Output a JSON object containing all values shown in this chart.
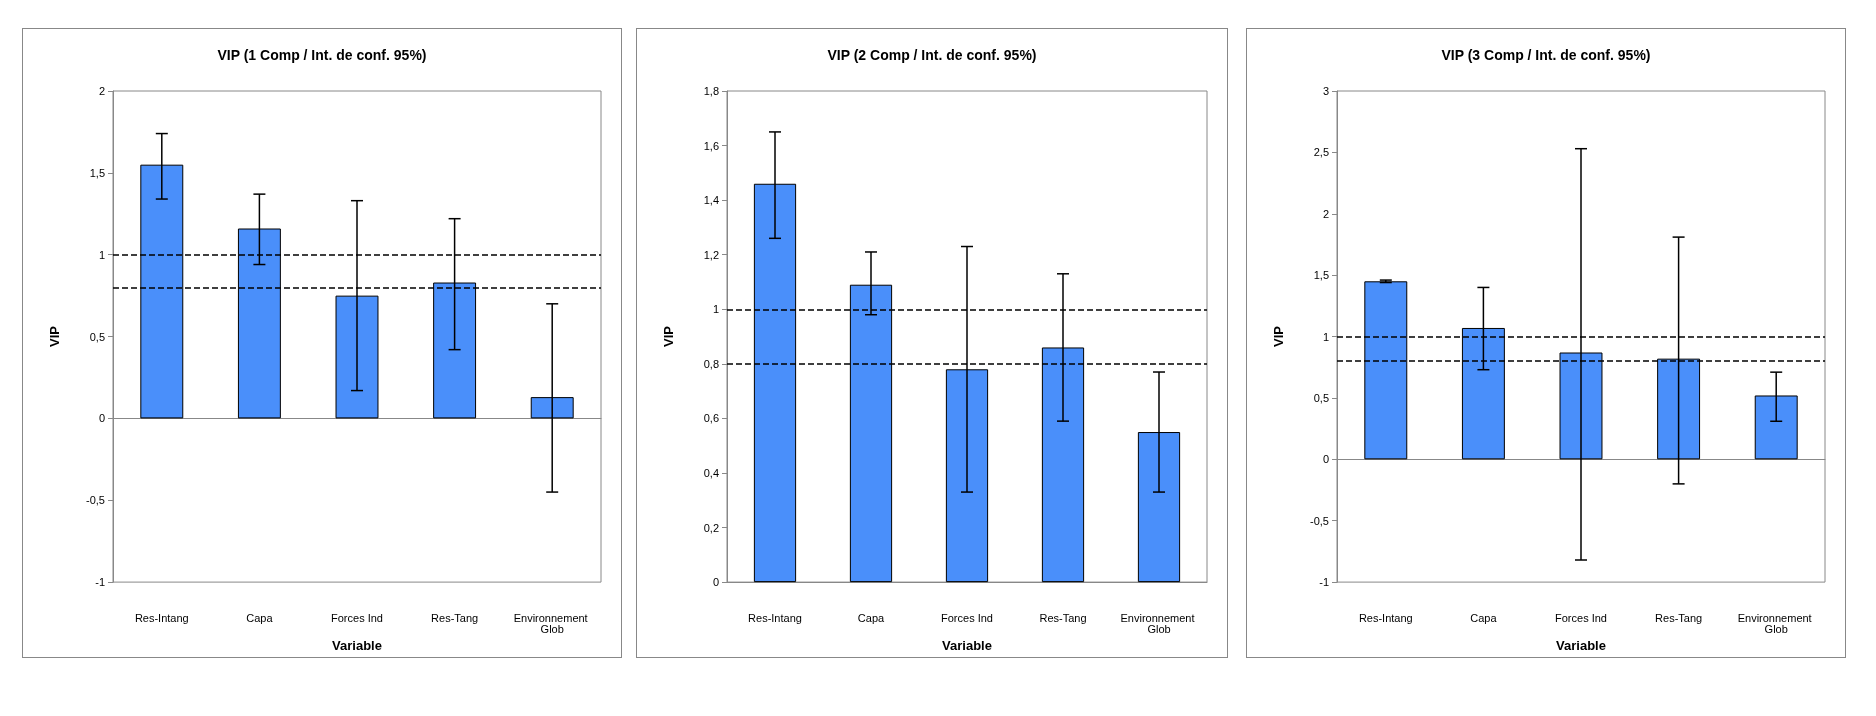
{
  "chart_data": [
    {
      "type": "bar",
      "title": "VIP (1 Comp / Int. de conf. 95%)",
      "xlabel": "Variable",
      "ylabel": "VIP",
      "categories": [
        "Res-Intang",
        "Capa",
        "Forces Ind",
        "Res-Tang",
        "Environnement Glob"
      ],
      "color": "#4a8ffa",
      "values": [
        1.55,
        1.16,
        0.75,
        0.83,
        0.13
      ],
      "errors": [
        [
          1.34,
          1.74
        ],
        [
          0.94,
          1.37
        ],
        [
          0.17,
          1.33
        ],
        [
          0.42,
          1.22
        ],
        [
          -0.45,
          0.7
        ]
      ],
      "ylim": [
        -1,
        2
      ],
      "yticks": [
        -1,
        {
          "value": -0.5,
          "label": "-0,5"
        },
        0,
        {
          "value": 0.5,
          "label": "0,5"
        },
        1,
        {
          "value": 1.5,
          "label": "1,5"
        },
        2
      ],
      "ref_lines": [
        {
          "axis": "y",
          "value": 1,
          "color": "#000000",
          "line_style": "dashed"
        },
        {
          "axis": "y",
          "value": 0.8,
          "color": "#000000",
          "line_style": "dashed"
        }
      ]
    },
    {
      "type": "bar",
      "title": "VIP (2 Comp / Int. de conf. 95%)",
      "xlabel": "Variable",
      "ylabel": "VIP",
      "categories": [
        "Res-Intang",
        "Capa",
        "Forces Ind",
        "Res-Tang",
        "Environnement Glob"
      ],
      "color": "#4a8ffa",
      "values": [
        1.46,
        1.09,
        0.78,
        0.86,
        0.55
      ],
      "errors": [
        [
          1.26,
          1.65
        ],
        [
          0.98,
          1.21
        ],
        [
          0.33,
          1.23
        ],
        [
          0.59,
          1.13
        ],
        [
          0.33,
          0.77
        ]
      ],
      "ylim": [
        0,
        1.8
      ],
      "yticks": [
        0,
        {
          "value": 0.2,
          "label": "0,2"
        },
        {
          "value": 0.4,
          "label": "0,4"
        },
        {
          "value": 0.6,
          "label": "0,6"
        },
        {
          "value": 0.8,
          "label": "0,8"
        },
        1,
        {
          "value": 1.2,
          "label": "1,2"
        },
        {
          "value": 1.4,
          "label": "1,4"
        },
        {
          "value": 1.6,
          "label": "1,6"
        },
        {
          "value": 1.8,
          "label": "1,8"
        }
      ],
      "ref_lines": [
        {
          "axis": "y",
          "value": 1,
          "color": "#000000",
          "line_style": "dashed"
        },
        {
          "axis": "y",
          "value": 0.8,
          "color": "#000000",
          "line_style": "dashed"
        }
      ]
    },
    {
      "type": "bar",
      "title": "VIP (3 Comp / Int. de conf. 95%)",
      "xlabel": "Variable",
      "ylabel": "VIP",
      "categories": [
        "Res-Intang",
        "Capa",
        "Forces Ind",
        "Res-Tang",
        "Environnement Glob"
      ],
      "color": "#4a8ffa",
      "values": [
        1.45,
        1.07,
        0.87,
        0.82,
        0.52
      ],
      "errors": [
        [
          1.44,
          1.46
        ],
        [
          0.73,
          1.4
        ],
        [
          -0.82,
          2.53
        ],
        [
          -0.2,
          1.81
        ],
        [
          0.31,
          0.71
        ]
      ],
      "ylim": [
        -1,
        3
      ],
      "yticks": [
        -1,
        {
          "value": -0.5,
          "label": "-0,5"
        },
        0,
        {
          "value": 0.5,
          "label": "0,5"
        },
        1,
        {
          "value": 1.5,
          "label": "1,5"
        },
        2,
        {
          "value": 2.5,
          "label": "2,5"
        },
        3
      ],
      "ref_lines": [
        {
          "axis": "y",
          "value": 1,
          "color": "#000000",
          "line_style": "dashed"
        },
        {
          "axis": "y",
          "value": 0.8,
          "color": "#000000",
          "line_style": "dashed"
        }
      ]
    }
  ]
}
